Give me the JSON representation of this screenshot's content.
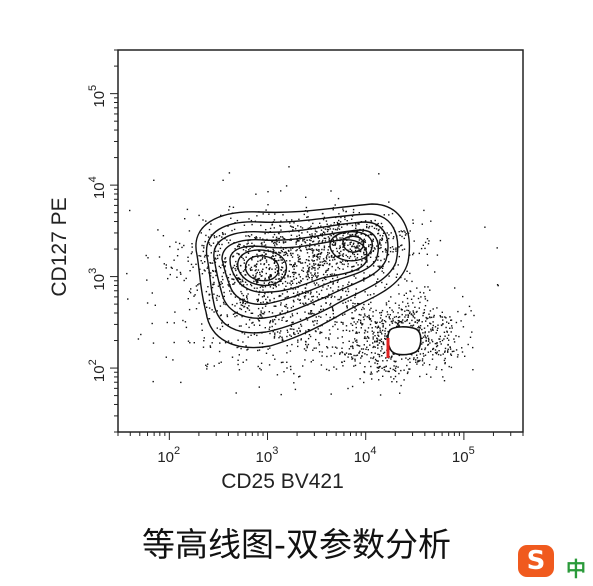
{
  "chart_data": {
    "type": "contour",
    "xlabel": "CD25 BV421",
    "ylabel": "CD127 PE",
    "x_scale": "log",
    "y_scale": "log",
    "xlim": [
      30,
      400000
    ],
    "ylim": [
      20,
      300000
    ],
    "x_ticks": [
      {
        "value": 100,
        "base": "10",
        "exp": "2"
      },
      {
        "value": 1000,
        "base": "10",
        "exp": "3"
      },
      {
        "value": 10000,
        "base": "10",
        "exp": "4"
      },
      {
        "value": 100000,
        "base": "10",
        "exp": "5"
      }
    ],
    "y_ticks": [
      {
        "value": 100,
        "base": "10",
        "exp": "2"
      },
      {
        "value": 1000,
        "base": "10",
        "exp": "3"
      },
      {
        "value": 10000,
        "base": "10",
        "exp": "4"
      },
      {
        "value": 100000,
        "base": "10",
        "exp": "5"
      }
    ],
    "populations": [
      {
        "center_x": 600,
        "center_y": 1500,
        "peak": "high"
      },
      {
        "center_x": 6000,
        "center_y": 2500,
        "peak": "high"
      },
      {
        "center_x": 15000,
        "center_y": 250,
        "peak": "low"
      }
    ],
    "gate_marker_color": "#e02020"
  },
  "caption": "等高线图-双参数分析",
  "ime": {
    "logo": "S",
    "label": "中",
    "color": "#f05a1e"
  }
}
